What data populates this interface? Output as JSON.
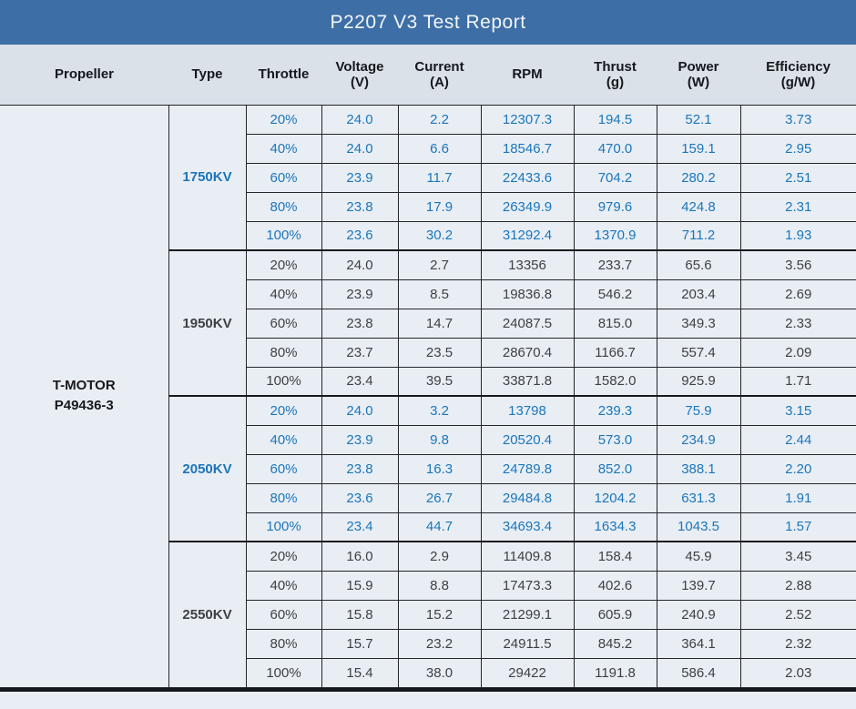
{
  "title": "P2207 V3 Test Report",
  "colors": {
    "title_bg": "#3d6ea5",
    "title_text": "#f2f6fa",
    "header_bg": "#dbe1e9",
    "row_bg": "#e9eef5",
    "border": "#23262b",
    "blue_series_text": "#1b76ba",
    "dark_series_text": "#3e4044"
  },
  "columns": [
    {
      "label": "Propeller",
      "sub": ""
    },
    {
      "label": "Type",
      "sub": ""
    },
    {
      "label": "Throttle",
      "sub": ""
    },
    {
      "label": "Voltage",
      "sub": "(V)"
    },
    {
      "label": "Current",
      "sub": "(A)"
    },
    {
      "label": "RPM",
      "sub": ""
    },
    {
      "label": "Thrust",
      "sub": "(g)"
    },
    {
      "label": "Power",
      "sub": "(W)"
    },
    {
      "label": "Efficiency",
      "sub": "(g/W)"
    }
  ],
  "propeller": {
    "line1": "T-MOTOR",
    "line2": "P49436-3"
  },
  "groups": [
    {
      "type": "1750KV",
      "color": "blue",
      "rows": [
        [
          "20%",
          "24.0",
          "2.2",
          "12307.3",
          "194.5",
          "52.1",
          "3.73"
        ],
        [
          "40%",
          "24.0",
          "6.6",
          "18546.7",
          "470.0",
          "159.1",
          "2.95"
        ],
        [
          "60%",
          "23.9",
          "11.7",
          "22433.6",
          "704.2",
          "280.2",
          "2.51"
        ],
        [
          "80%",
          "23.8",
          "17.9",
          "26349.9",
          "979.6",
          "424.8",
          "2.31"
        ],
        [
          "100%",
          "23.6",
          "30.2",
          "31292.4",
          "1370.9",
          "711.2",
          "1.93"
        ]
      ]
    },
    {
      "type": "1950KV",
      "color": "dark",
      "rows": [
        [
          "20%",
          "24.0",
          "2.7",
          "13356",
          "233.7",
          "65.6",
          "3.56"
        ],
        [
          "40%",
          "23.9",
          "8.5",
          "19836.8",
          "546.2",
          "203.4",
          "2.69"
        ],
        [
          "60%",
          "23.8",
          "14.7",
          "24087.5",
          "815.0",
          "349.3",
          "2.33"
        ],
        [
          "80%",
          "23.7",
          "23.5",
          "28670.4",
          "1166.7",
          "557.4",
          "2.09"
        ],
        [
          "100%",
          "23.4",
          "39.5",
          "33871.8",
          "1582.0",
          "925.9",
          "1.71"
        ]
      ]
    },
    {
      "type": "2050KV",
      "color": "blue",
      "rows": [
        [
          "20%",
          "24.0",
          "3.2",
          "13798",
          "239.3",
          "75.9",
          "3.15"
        ],
        [
          "40%",
          "23.9",
          "9.8",
          "20520.4",
          "573.0",
          "234.9",
          "2.44"
        ],
        [
          "60%",
          "23.8",
          "16.3",
          "24789.8",
          "852.0",
          "388.1",
          "2.20"
        ],
        [
          "80%",
          "23.6",
          "26.7",
          "29484.8",
          "1204.2",
          "631.3",
          "1.91"
        ],
        [
          "100%",
          "23.4",
          "44.7",
          "34693.4",
          "1634.3",
          "1043.5",
          "1.57"
        ]
      ]
    },
    {
      "type": "2550KV",
      "color": "dark",
      "rows": [
        [
          "20%",
          "16.0",
          "2.9",
          "11409.8",
          "158.4",
          "45.9",
          "3.45"
        ],
        [
          "40%",
          "15.9",
          "8.8",
          "17473.3",
          "402.6",
          "139.7",
          "2.88"
        ],
        [
          "60%",
          "15.8",
          "15.2",
          "21299.1",
          "605.9",
          "240.9",
          "2.52"
        ],
        [
          "80%",
          "15.7",
          "23.2",
          "24911.5",
          "845.2",
          "364.1",
          "2.32"
        ],
        [
          "100%",
          "15.4",
          "38.0",
          "29422",
          "1191.8",
          "586.4",
          "2.03"
        ]
      ]
    }
  ]
}
